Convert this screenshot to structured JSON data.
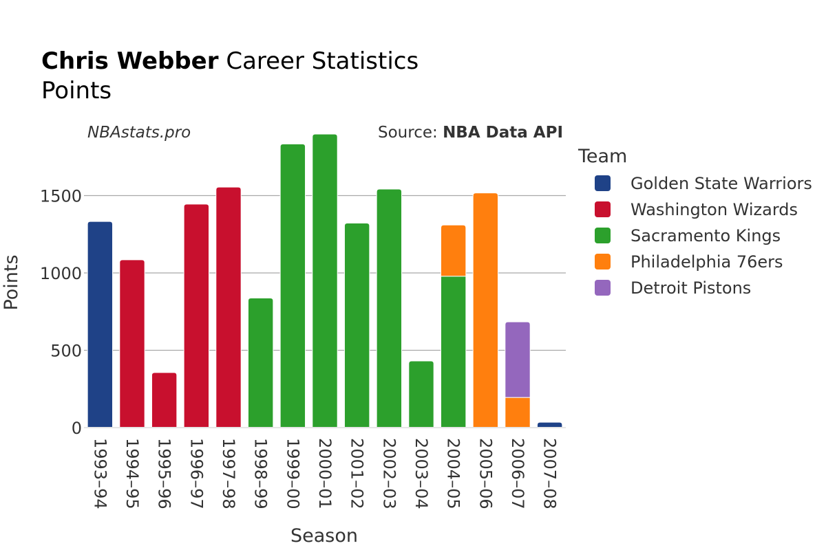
{
  "title": {
    "bold": "Chris Webber",
    "rest": "Career Statistics",
    "subtitle": "Points"
  },
  "credit_left": "NBAstats.pro",
  "source": {
    "prefix": "Source: ",
    "name": "NBA Data API"
  },
  "legend_title": "Team",
  "chart_data": {
    "type": "bar",
    "stacked": true,
    "xlabel": "Season",
    "ylabel": "Points",
    "ylim": [
      0,
      1900
    ],
    "yticks": [
      0,
      500,
      1000,
      1500
    ],
    "grid": true,
    "legend_position": "right",
    "categories": [
      "1993–94",
      "1994–95",
      "1995–96",
      "1996–97",
      "1997–98",
      "1998–99",
      "1999–00",
      "2000–01",
      "2001–02",
      "2002–03",
      "2003–04",
      "2004–05",
      "2005–06",
      "2006–07",
      "2007–08"
    ],
    "series": [
      {
        "name": "Golden State Warriors",
        "color": "#1f4287",
        "values": [
          1333,
          0,
          0,
          0,
          0,
          0,
          0,
          0,
          0,
          0,
          0,
          0,
          0,
          0,
          35
        ]
      },
      {
        "name": "Washington Wizards",
        "color": "#c8102e",
        "values": [
          0,
          1085,
          356,
          1445,
          1555,
          0,
          0,
          0,
          0,
          0,
          0,
          0,
          0,
          0,
          0
        ]
      },
      {
        "name": "Sacramento Kings",
        "color": "#2ca02c",
        "values": [
          0,
          0,
          0,
          0,
          0,
          838,
          1834,
          1898,
          1322,
          1542,
          431,
          979,
          0,
          0,
          0
        ]
      },
      {
        "name": "Philadelphia 76ers",
        "color": "#ff7f0e",
        "values": [
          0,
          0,
          0,
          0,
          0,
          0,
          0,
          0,
          0,
          0,
          0,
          331,
          1517,
          195,
          0
        ]
      },
      {
        "name": "Detroit Pistons",
        "color": "#9467bd",
        "values": [
          0,
          0,
          0,
          0,
          0,
          0,
          0,
          0,
          0,
          0,
          0,
          0,
          0,
          489,
          0
        ]
      }
    ]
  }
}
